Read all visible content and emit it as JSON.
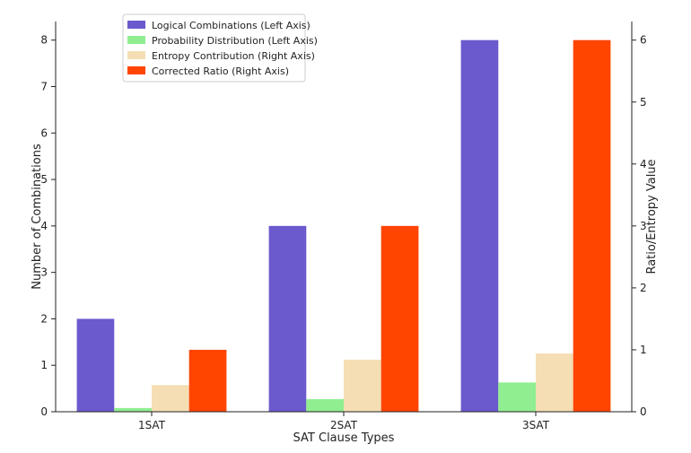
{
  "chart_data": {
    "type": "bar",
    "title": "",
    "xlabel": "SAT Clause Types",
    "ylabel_left": "Number of Combinations",
    "ylabel_right": "Ratio/Entropy Value",
    "categories": [
      "1SAT",
      "2SAT",
      "3SAT"
    ],
    "ylim_left": [
      0,
      8.4
    ],
    "ylim_right": [
      0,
      6.3
    ],
    "yticks_left": [
      0,
      1,
      2,
      3,
      4,
      5,
      6,
      7,
      8
    ],
    "yticks_right": [
      0,
      1,
      2,
      3,
      4,
      5,
      6
    ],
    "legend_position": "top-left",
    "series": [
      {
        "name": "Logical Combinations (Left Axis)",
        "axis": "left",
        "color": "#6a5acd",
        "values": [
          2,
          4,
          8
        ]
      },
      {
        "name": "Probability Distribution (Left Axis)",
        "axis": "left",
        "color": "#90ee90",
        "values": [
          0.08,
          0.27,
          0.63
        ]
      },
      {
        "name": "Entropy Contribution (Right Axis)",
        "axis": "right",
        "color": "#f5deb3",
        "values": [
          0.43,
          0.84,
          0.94
        ]
      },
      {
        "name": "Corrected Ratio (Right Axis)",
        "axis": "right",
        "color": "#ff4500",
        "values": [
          1.0,
          3.0,
          6.0
        ]
      }
    ]
  }
}
